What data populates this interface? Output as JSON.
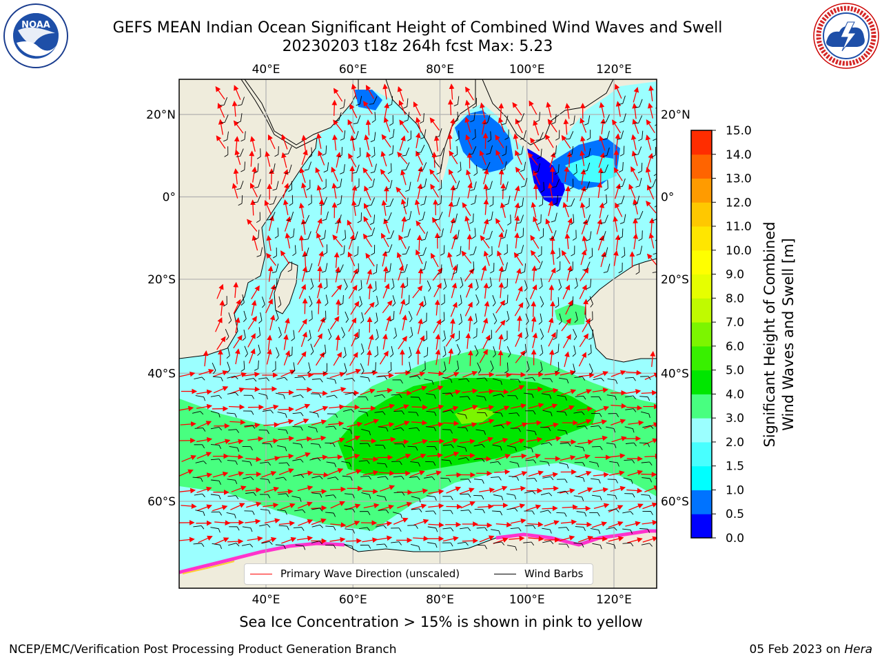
{
  "title_line1": "GEFS MEAN Indian Ocean Significant Height of Combined Wind Waves and Swell",
  "title_line2": "20230203 t18z 264h fcst   Max: 5.23",
  "logos": {
    "left": {
      "name": "NOAA",
      "ring_text": "NATIONAL OCEANIC AND ATMOSPHERIC ADMINISTRATION · U.S. DEPARTMENT OF COMMERCE"
    },
    "right": {
      "name": "NATIONAL WEATHER SERVICE"
    }
  },
  "map": {
    "region": "Indian Ocean",
    "lon_range": [
      20,
      130
    ],
    "lat_range": [
      -72,
      28
    ],
    "top_lon_labels": [
      "40°E",
      "60°E",
      "80°E",
      "100°E",
      "120°E"
    ],
    "bottom_lon_labels": [
      "40°E",
      "60°E",
      "80°E",
      "100°E",
      "120°E"
    ],
    "left_lat_labels": [
      "20°N",
      "0°",
      "20°S",
      "40°S",
      "60°S"
    ],
    "right_lat_labels": [
      "20°N",
      "0°",
      "20°S",
      "40°S",
      "60°S"
    ],
    "gridlines": true,
    "colors": {
      "land": "#efecdc",
      "grid": "#b0b0b0",
      "arrows": "#ff0000",
      "barbs": "#000000"
    }
  },
  "legend": {
    "placement": "bottom-center",
    "items": [
      {
        "label": "Primary Wave Direction (unscaled)",
        "color": "#ff0000"
      },
      {
        "label": "Wind Barbs",
        "color": "#000000"
      }
    ]
  },
  "colorbar": {
    "label_line1": "Significant Height of Combined",
    "label_line2": "Wind Waves and Swell [m]",
    "ticks": [
      "0.0",
      "0.5",
      "1.0",
      "1.5",
      "2.0",
      "3.0",
      "4.0",
      "5.0",
      "6.0",
      "7.0",
      "8.0",
      "9.0",
      "10.0",
      "11.0",
      "12.0",
      "13.0",
      "14.0",
      "15.0"
    ],
    "colors": [
      "#0000ff",
      "#0073ff",
      "#00ffff",
      "#48ffff",
      "#9bffff",
      "#48ff80",
      "#00e600",
      "#38f000",
      "#7cf500",
      "#c0fa00",
      "#e6ff00",
      "#ffff00",
      "#ffe600",
      "#ffc800",
      "#ff9b00",
      "#ff6400",
      "#ff2d00"
    ]
  },
  "bottom_note": "Sea Ice Concentration > 15% is shown in pink to yellow",
  "footer": {
    "left": "NCEP/EMC/Verification Post Processing Product Generation Branch",
    "right_prefix": "05 Feb 2023 on ",
    "right_host": "Hera"
  }
}
